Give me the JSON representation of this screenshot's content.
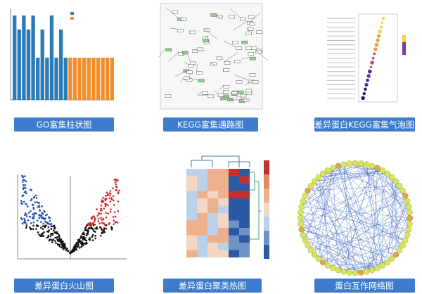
{
  "panels": [
    {
      "caption": "GO富集柱状图"
    },
    {
      "caption": "KEGG富集通路图"
    },
    {
      "caption": "差异蛋白KEGG富集气泡图"
    },
    {
      "caption": "差异蛋白火山图"
    },
    {
      "caption": "差异蛋白聚类热图"
    },
    {
      "caption": "蛋白互作网络图"
    }
  ]
}
